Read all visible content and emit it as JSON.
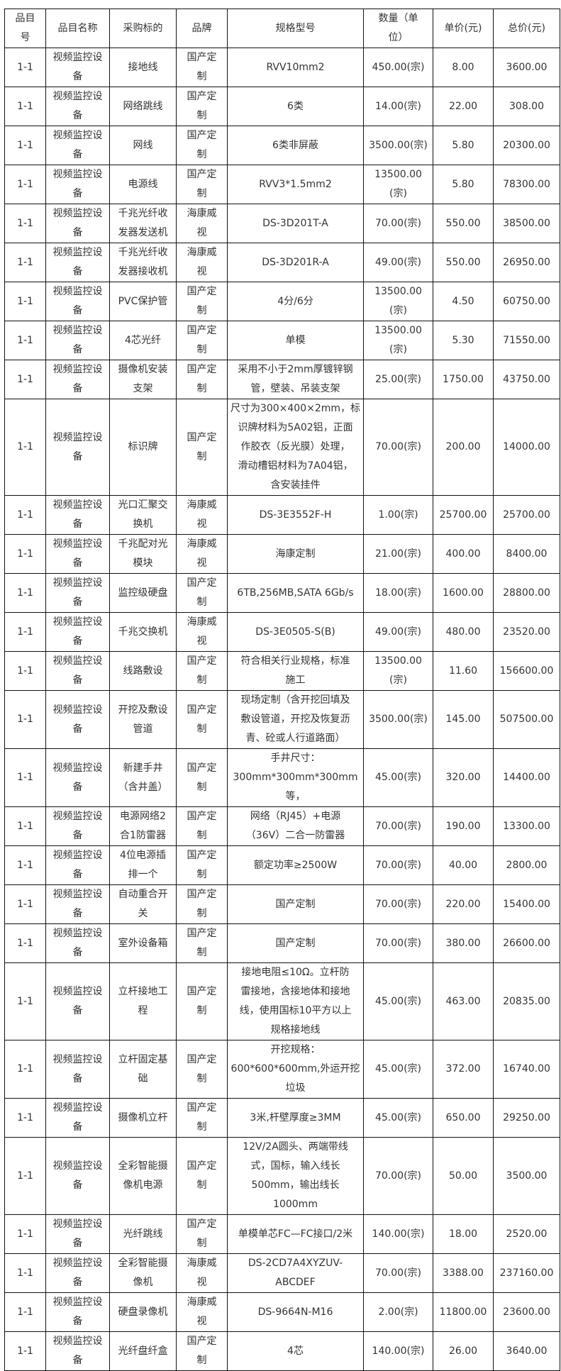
{
  "table": {
    "headers": [
      "品目\n号",
      "品目名称",
      "采购标的",
      "品牌",
      "规格型号",
      "数量（单\n位）",
      "单价(元)",
      "总价(元)"
    ],
    "rows": [
      [
        "1-1",
        "视频监控设\n备",
        "接地线",
        "国产定\n制",
        "RVV10mm2",
        "450.00(宗)",
        "8.00",
        "3600.00"
      ],
      [
        "1-1",
        "视频监控设\n备",
        "网络跳线",
        "国产定\n制",
        "6类",
        "14.00(宗)",
        "22.00",
        "308.00"
      ],
      [
        "1-1",
        "视频监控设\n备",
        "网线",
        "国产定\n制",
        "6类非屏蔽",
        "3500.00(宗)",
        "5.80",
        "20300.00"
      ],
      [
        "1-1",
        "视频监控设\n备",
        "电源线",
        "国产定\n制",
        "RVV3*1.5mm2",
        "13500.00\n(宗)",
        "5.80",
        "78300.00"
      ],
      [
        "1-1",
        "视频监控设\n备",
        "千兆光纤收\n发器发送机",
        "海康威\n视",
        "DS-3D201T-A",
        "70.00(宗)",
        "550.00",
        "38500.00"
      ],
      [
        "1-1",
        "视频监控设\n备",
        "千兆光纤收\n发器接收机",
        "海康威\n视",
        "DS-3D201R-A",
        "49.00(宗)",
        "550.00",
        "26950.00"
      ],
      [
        "1-1",
        "视频监控设\n备",
        "PVC保护管",
        "国产定\n制",
        "4分/6分",
        "13500.00\n(宗)",
        "4.50",
        "60750.00"
      ],
      [
        "1-1",
        "视频监控设\n备",
        "4芯光纤",
        "国产定\n制",
        "单模",
        "13500.00\n(宗)",
        "5.30",
        "71550.00"
      ],
      [
        "1-1",
        "视频监控设\n备",
        "摄像机安装\n支架",
        "国产定\n制",
        "采用不小于2mm厚镀锌钢\n管，壁装、吊装支架",
        "25.00(宗)",
        "1750.00",
        "43750.00"
      ],
      [
        "1-1",
        "视频监控设\n备",
        "标识牌",
        "国产定\n制",
        "尺寸为300×400×2mm，标\n识牌材料为5A02铝，正面\n作胶衣（反光膜）处理，\n滑动槽铝材料为7A04铝，\n含安装挂件",
        "70.00(宗)",
        "200.00",
        "14000.00"
      ],
      [
        "1-1",
        "视频监控设\n备",
        "光口汇聚交\n换机",
        "海康威\n视",
        "DS-3E3552F-H",
        "1.00(宗)",
        "25700.00",
        "25700.00"
      ],
      [
        "1-1",
        "视频监控设\n备",
        "千兆配对光\n模块",
        "海康威\n视",
        "海康定制",
        "21.00(宗)",
        "400.00",
        "8400.00"
      ],
      [
        "1-1",
        "视频监控设\n备",
        "监控级硬盘",
        "国产定\n制",
        "6TB,256MB,SATA 6Gb/s",
        "18.00(宗)",
        "1600.00",
        "28800.00"
      ],
      [
        "1-1",
        "视频监控设\n备",
        "千兆交换机",
        "海康威\n视",
        "DS-3E0505-S(B)",
        "49.00(宗)",
        "480.00",
        "23520.00"
      ],
      [
        "1-1",
        "视频监控设\n备",
        "线路敷设",
        "国产定\n制",
        "符合相关行业规格，标准\n施工",
        "13500.00\n(宗)",
        "11.60",
        "156600.00"
      ],
      [
        "1-1",
        "视频监控设\n备",
        "开挖及敷设\n管道",
        "国产定\n制",
        "现场定制（含开挖回填及\n敷设管道，开挖及恢复沥\n青、砼或人行道路面）",
        "3500.00(宗)",
        "145.00",
        "507500.00"
      ],
      [
        "1-1",
        "视频监控设\n备",
        "新建手井\n（含井盖）",
        "国产定\n制",
        "手井尺寸：\n300mm*300mm*300mm等，",
        "45.00(宗)",
        "320.00",
        "14400.00"
      ],
      [
        "1-1",
        "视频监控设\n备",
        "电源网络2\n合1防雷器",
        "国产定\n制",
        "网络（RJ45）+电源\n（36V）二合一防雷器",
        "70.00(宗)",
        "190.00",
        "13300.00"
      ],
      [
        "1-1",
        "视频监控设\n备",
        "4位电源插\n排一个",
        "国产定\n制",
        "额定功率≥2500W",
        "70.00(宗)",
        "40.00",
        "2800.00"
      ],
      [
        "1-1",
        "视频监控设\n备",
        "自动重合开\n关",
        "国产定\n制",
        "国产定制",
        "70.00(宗)",
        "220.00",
        "15400.00"
      ],
      [
        "1-1",
        "视频监控设\n备",
        "室外设备箱",
        "国产定\n制",
        "国产定制",
        "70.00(宗)",
        "380.00",
        "26600.00"
      ],
      [
        "1-1",
        "视频监控设\n备",
        "立杆接地工\n程",
        "国产定\n制",
        "接地电阻≤10Ω。立杆防\n雷接地，含接地体和接地\n线，使用国标10平方以上\n规格接地线",
        "45.00(宗)",
        "463.00",
        "20835.00"
      ],
      [
        "1-1",
        "视频监控设\n备",
        "立杆固定基\n础",
        "国产定\n制",
        "开挖规格：\n600*600*600mm,外运开挖\n垃圾",
        "45.00(宗)",
        "372.00",
        "16740.00"
      ],
      [
        "1-1",
        "视频监控设\n备",
        "摄像机立杆",
        "国产定\n制",
        "3米,杆壁厚度≥3MM",
        "45.00(宗)",
        "650.00",
        "29250.00"
      ],
      [
        "1-1",
        "视频监控设\n备",
        "全彩智能摄\n像机电源",
        "国产定\n制",
        "12V/2A圆头、两端带线\n式，国标，输入线长\n500mm，输出线长1000mm",
        "70.00(宗)",
        "50.00",
        "3500.00"
      ],
      [
        "1-1",
        "视频监控设\n备",
        "光纤跳线",
        "国产定\n制",
        "单模单芯FC—FC接口/2米",
        "140.00(宗)",
        "18.00",
        "2520.00"
      ],
      [
        "1-1",
        "视频监控设\n备",
        "全彩智能摄\n像机",
        "海康威\n视",
        "DS-2CD7A4XYZUV-ABCDEF",
        "70.00(宗)",
        "3388.00",
        "237160.00"
      ],
      [
        "1-1",
        "视频监控设\n备",
        "硬盘录像机",
        "海康威\n视",
        "DS-9664N-M16",
        "2.00(宗)",
        "11800.00",
        "23600.00"
      ],
      [
        "1-1",
        "视频监控设\n备",
        "光纤盘纤盒",
        "国产定\n制",
        "4芯",
        "140.00(宗)",
        "26.00",
        "3640.00"
      ]
    ]
  }
}
